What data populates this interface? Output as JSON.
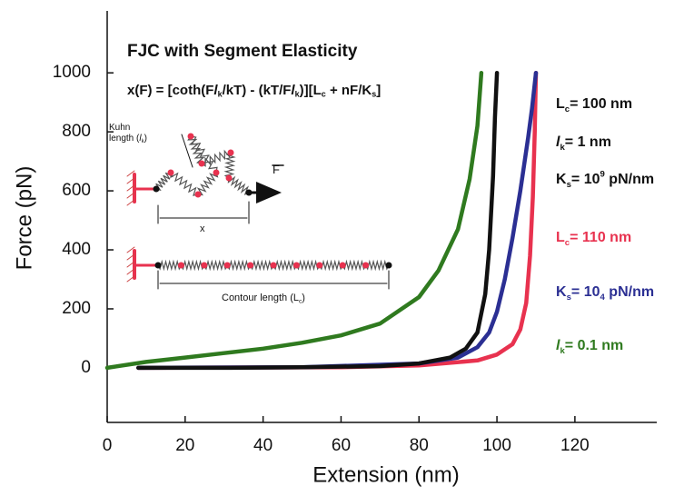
{
  "chart_data": {
    "type": "line",
    "title": "FJC with Segment Elasticity",
    "x_label": "Extension (nm)",
    "y_label": "Force (pN)",
    "xlim": [
      0,
      141
    ],
    "ylim": [
      -185,
      1210
    ],
    "xticks": [
      0,
      20,
      40,
      60,
      80,
      100,
      120
    ],
    "yticks": [
      0,
      200,
      400,
      600,
      800,
      1000
    ],
    "grid": false,
    "series": [
      {
        "color": "#e8324f",
        "x": [
          8,
          60,
          80,
          95,
          100,
          104,
          106,
          107.5,
          108.5,
          109.2,
          109.7,
          110
        ],
        "values": [
          0,
          2,
          8,
          25,
          45,
          80,
          130,
          220,
          380,
          580,
          800,
          1000
        ]
      },
      {
        "color": "#2b2f93",
        "x": [
          8,
          50,
          80,
          90,
          95,
          98,
          100,
          102,
          104,
          106,
          108,
          109,
          110
        ],
        "values": [
          0,
          2,
          15,
          35,
          70,
          120,
          190,
          300,
          440,
          600,
          780,
          880,
          1000
        ]
      },
      {
        "color": "#2f7a1f",
        "x": [
          0,
          10,
          20,
          30,
          40,
          50,
          60,
          70,
          80,
          85,
          90,
          93,
          95,
          96
        ],
        "values": [
          0,
          20,
          35,
          50,
          65,
          85,
          110,
          150,
          240,
          330,
          470,
          640,
          820,
          1000
        ]
      },
      {
        "color": "#111111",
        "x": [
          8,
          30,
          50,
          70,
          80,
          88,
          92,
          95,
          97,
          98,
          99,
          99.5,
          100
        ],
        "values": [
          0,
          0,
          2,
          6,
          15,
          35,
          65,
          120,
          250,
          400,
          650,
          850,
          1000
        ]
      }
    ],
    "formula": [
      {
        "text": "x(F) = [coth(F"
      },
      {
        "text": "l",
        "italic": true
      },
      {
        "text": "k",
        "sub": true
      },
      {
        "text": "/kT) - (kT/F"
      },
      {
        "text": "l",
        "italic": true
      },
      {
        "text": "k",
        "sub": true
      },
      {
        "text": ")][L"
      },
      {
        "text": "c",
        "sub": true
      },
      {
        "text": " + nF/K"
      },
      {
        "text": "s",
        "sub": true
      },
      {
        "text": "]"
      }
    ],
    "annotations": [
      {
        "color": "#111111",
        "parts": [
          {
            "text": "L"
          },
          {
            "text": "c",
            "sub": true
          },
          {
            "text": "= 100 nm"
          }
        ]
      },
      {
        "color": "#111111",
        "parts": [
          {
            "text": "l",
            "italic": true
          },
          {
            "text": "k",
            "sub": true
          },
          {
            "text": "= 1 nm"
          }
        ]
      },
      {
        "color": "#111111",
        "parts": [
          {
            "text": "K"
          },
          {
            "text": "s",
            "sub": true
          },
          {
            "text": "= 10"
          },
          {
            "text": "9",
            "sup": true
          },
          {
            "text": " pN/nm"
          }
        ]
      },
      {
        "color": "#e8324f",
        "parts": [
          {
            "text": "L"
          },
          {
            "text": "c",
            "sub": true
          },
          {
            "text": "= 110 nm"
          }
        ]
      },
      {
        "color": "#2b2f93",
        "parts": [
          {
            "text": "K"
          },
          {
            "text": "s",
            "sub": true
          },
          {
            "text": "= 10"
          },
          {
            "text": "4",
            "sub": true
          },
          {
            "text": " pN/nm"
          }
        ]
      },
      {
        "color": "#2f7a1f",
        "parts": [
          {
            "text": "l",
            "italic": true
          },
          {
            "text": "k",
            "sub": true
          },
          {
            "text": "= 0.1 nm"
          }
        ]
      }
    ],
    "inset_labels": [
      {
        "parts": [
          {
            "text": "Kuhn"
          }
        ]
      },
      {
        "parts": [
          {
            "text": "length ("
          },
          {
            "text": "l",
            "italic": true
          },
          {
            "text": "k",
            "sub": true
          },
          {
            "text": ")"
          }
        ]
      },
      {
        "parts": [
          {
            "text": "x"
          }
        ]
      },
      {
        "parts": [
          {
            "text": "Contour length (L"
          },
          {
            "text": "c",
            "sub": true
          },
          {
            "text": ")"
          }
        ]
      },
      {
        "parts": [
          {
            "text": "F"
          }
        ]
      }
    ]
  }
}
